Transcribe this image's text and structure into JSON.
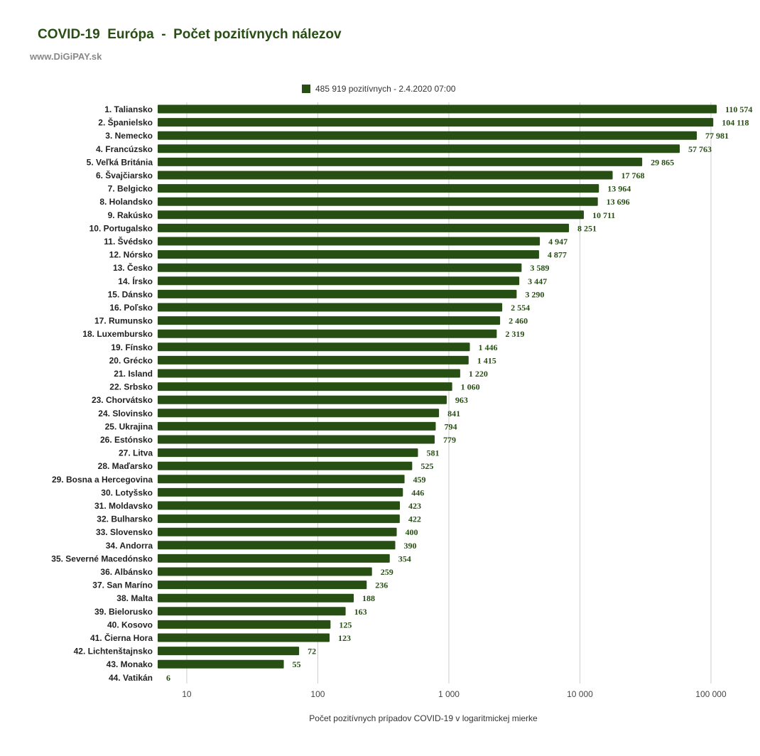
{
  "header": {
    "title": "COVID-19  Európa  -  Počet pozitívnych nálezov",
    "subtitle": "www.DiGiPAY.sk"
  },
  "chart_data": {
    "type": "bar",
    "orientation": "horizontal",
    "scale": "log",
    "xlim": [
      6,
      130000
    ],
    "ticks": [
      {
        "value": 10,
        "label": "10"
      },
      {
        "value": 100,
        "label": "100"
      },
      {
        "value": 1000,
        "label": "1 000"
      },
      {
        "value": 10000,
        "label": "10 000"
      },
      {
        "value": 100000,
        "label": "100 000"
      }
    ],
    "grid": true,
    "legend": {
      "position": "top",
      "entries": [
        "485 919 pozitívnych - 2.4.2020  07:00"
      ]
    },
    "xlabel": "Počet pozitívnych prípadov COVID-19  v logaritmickej mierke",
    "color": "#274e13",
    "categories": [
      "1. Taliansko",
      "2. Španielsko",
      "3. Nemecko",
      "4. Francúzsko",
      "5. Veľká Británia",
      "6. Švajčiarsko",
      "7. Belgicko",
      "8. Holandsko",
      "9. Rakúsko",
      "10. Portugalsko",
      "11. Švédsko",
      "12. Nórsko",
      "13. Česko",
      "14. Írsko",
      "15. Dánsko",
      "16. Poľsko",
      "17. Rumunsko",
      "18. Luxembursko",
      "19. Fínsko",
      "20. Grécko",
      "21. Island",
      "22. Srbsko",
      "23. Chorvátsko",
      "24. Slovinsko",
      "25. Ukrajina",
      "26. Estónsko",
      "27. Litva",
      "28. Maďarsko",
      "29. Bosna a Hercegovina",
      "30. Lotyšsko",
      "31. Moldavsko",
      "32. Bulharsko",
      "33. Slovensko",
      "34. Andorra",
      "35. Severné Macedónsko",
      "36. Albánsko",
      "37. San Maríno",
      "38. Malta",
      "39. Bielorusko",
      "40. Kosovo",
      "41. Čierna Hora",
      "42. Lichtenštajnsko",
      "43. Monako",
      "44. Vatikán"
    ],
    "values": [
      110574,
      104118,
      77981,
      57763,
      29865,
      17768,
      13964,
      13696,
      10711,
      8251,
      4947,
      4877,
      3589,
      3447,
      3290,
      2554,
      2460,
      2319,
      1446,
      1415,
      1220,
      1060,
      963,
      841,
      794,
      779,
      581,
      525,
      459,
      446,
      423,
      422,
      400,
      390,
      354,
      259,
      236,
      188,
      163,
      125,
      123,
      72,
      55,
      6
    ],
    "value_labels": [
      "110 574",
      "104 118",
      "77 981",
      "57 763",
      "29 865",
      "17 768",
      "13 964",
      "13 696",
      "10 711",
      "8 251",
      "4 947",
      "4 877",
      "3 589",
      "3 447",
      "3 290",
      "2 554",
      "2 460",
      "2 319",
      "1 446",
      "1 415",
      "1 220",
      "1 060",
      "963",
      "841",
      "794",
      "779",
      "581",
      "525",
      "459",
      "446",
      "423",
      "422",
      "400",
      "390",
      "354",
      "259",
      "236",
      "188",
      "163",
      "125",
      "123",
      "72",
      "55",
      "6"
    ]
  }
}
